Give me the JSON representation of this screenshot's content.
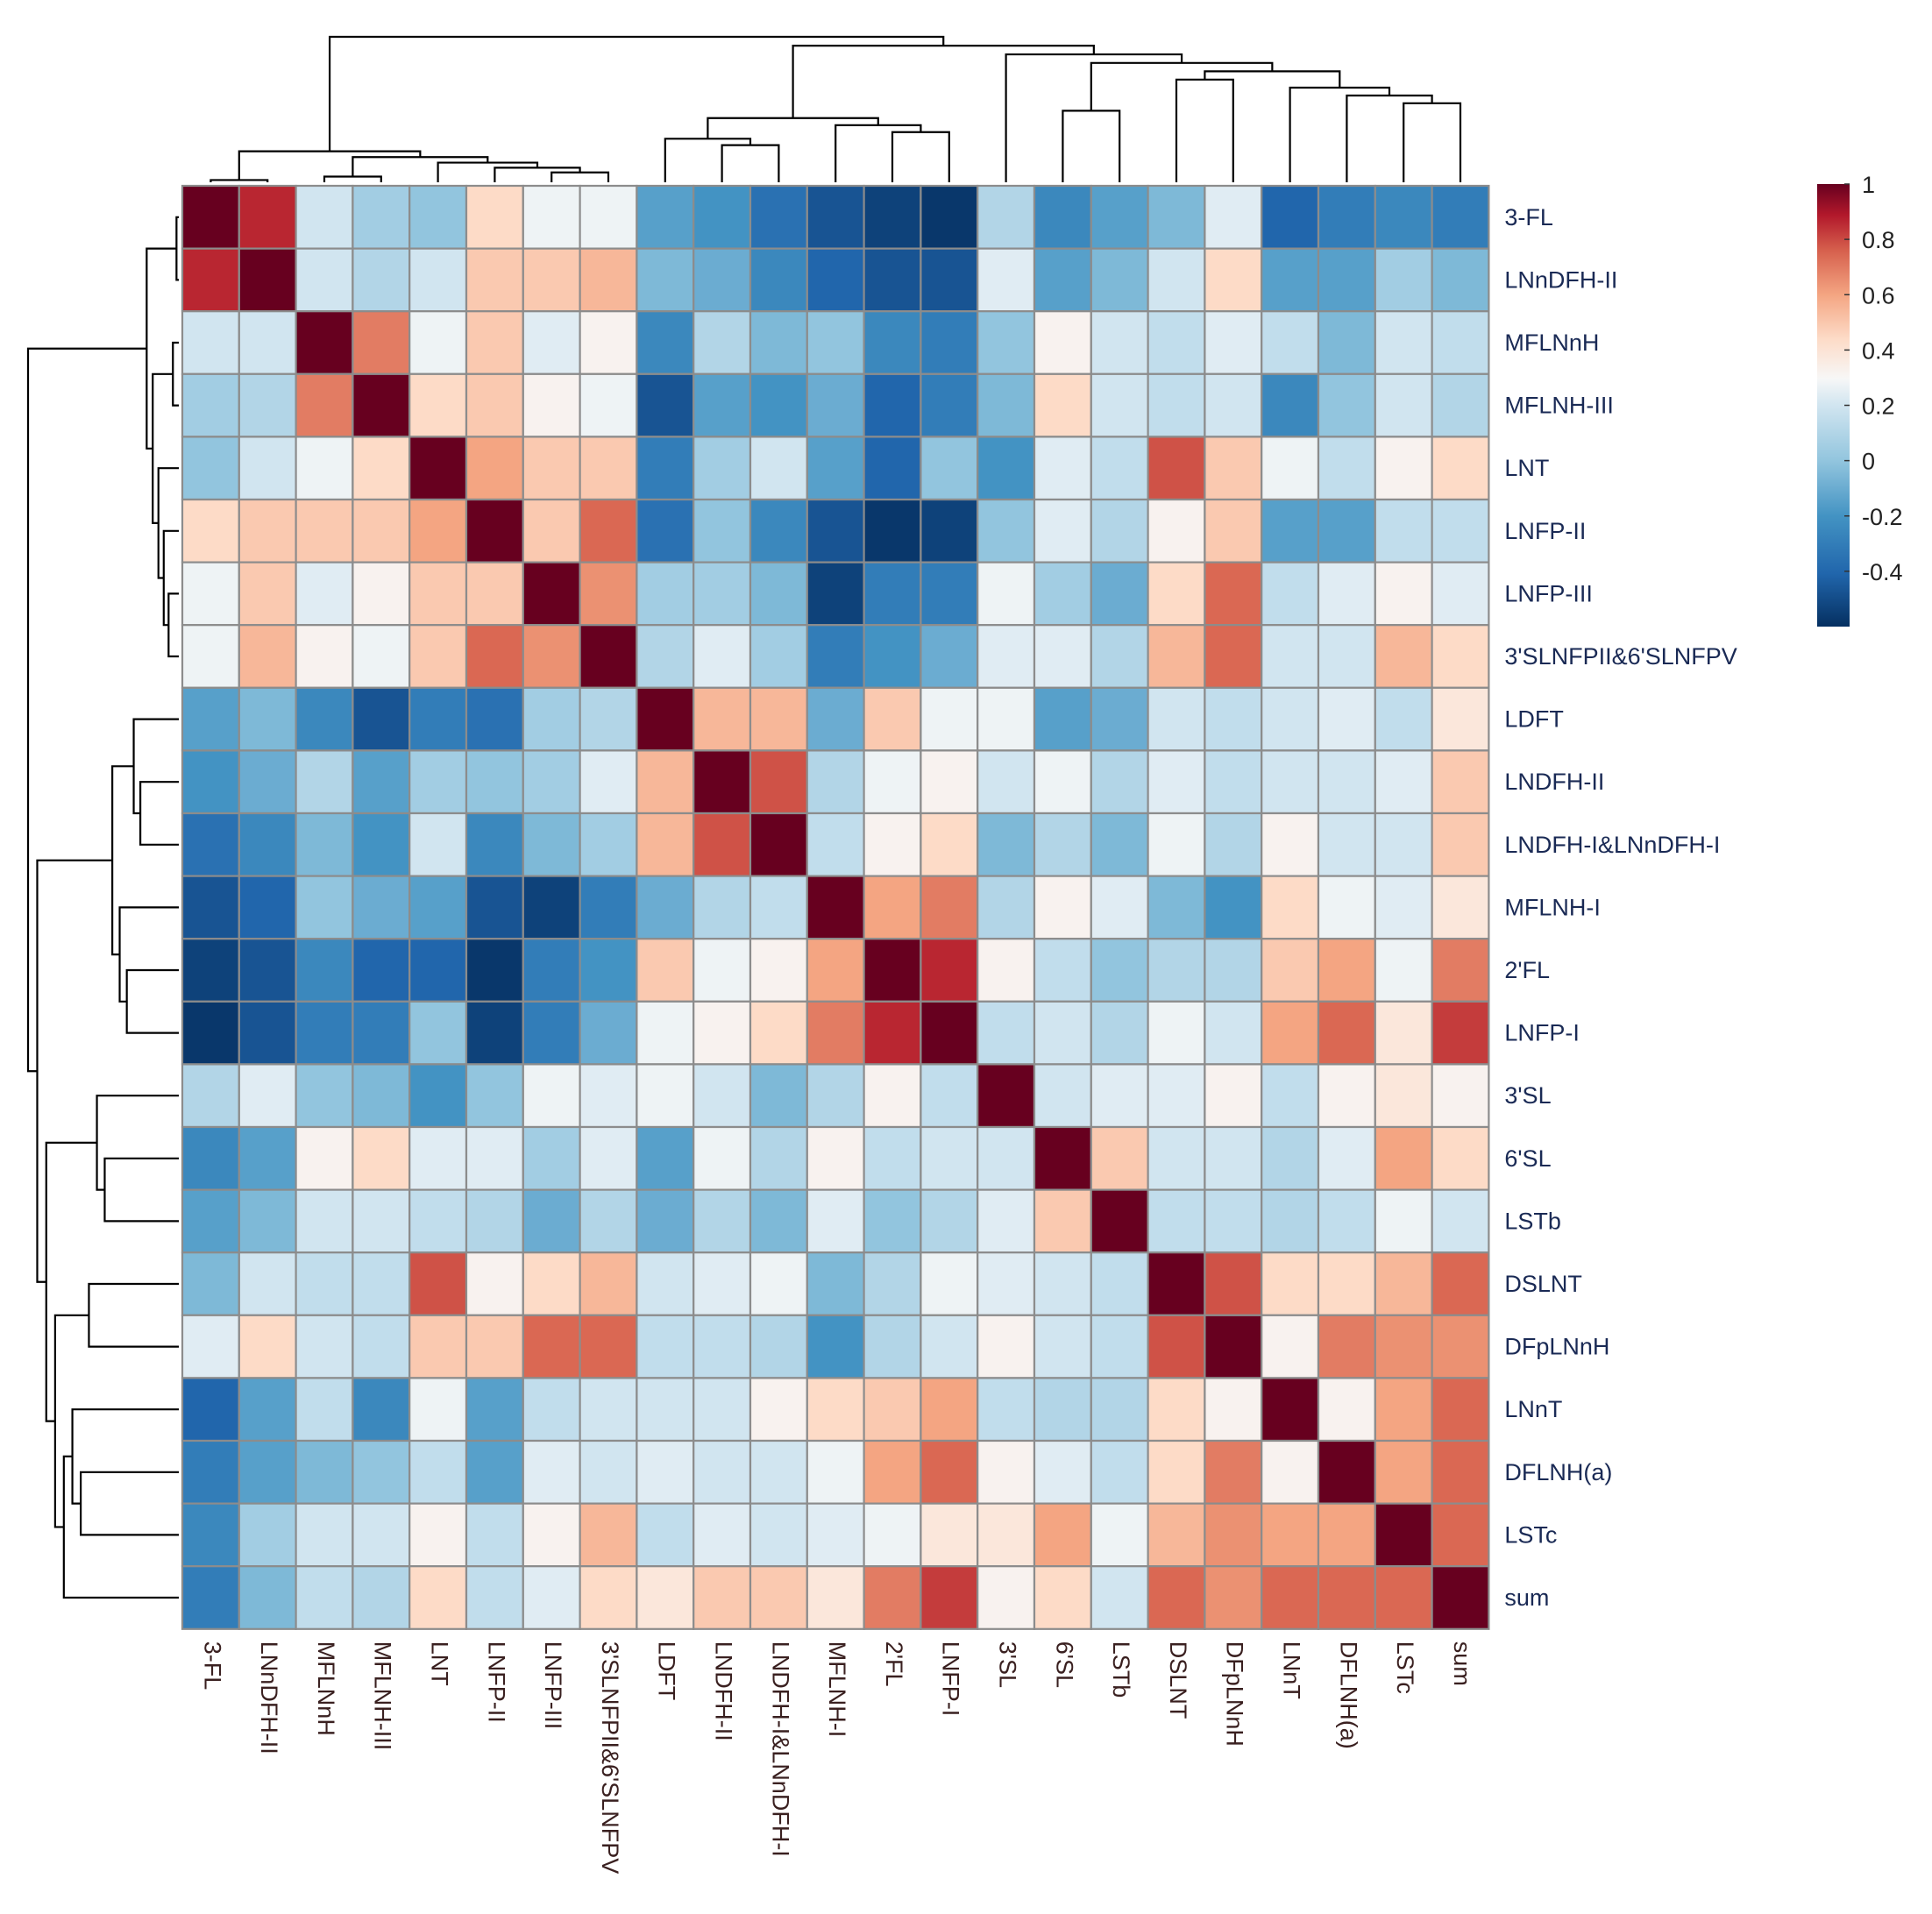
{
  "chart_data": {
    "type": "heatmap",
    "title": "",
    "labels": [
      "3-FL",
      "LNnDFH-II",
      "MFLNnH",
      "MFLNH-III",
      "LNT",
      "LNFP-II",
      "LNFP-III",
      "3'SLNFPII&6'SLNFPV",
      "LDFT",
      "LNDFH-II",
      "LNDFH-I&LNnDFH-I",
      "MFLNH-I",
      "2'FL",
      "LNFP-I",
      "3'SL",
      "6'SL",
      "LSTb",
      "DSLNT",
      "DFpLNnH",
      "LNnT",
      "DFLNH(a)",
      "LSTc",
      "sum"
    ],
    "values": [
      [
        1.0,
        0.85,
        0.15,
        0.0,
        -0.05,
        0.4,
        0.25,
        0.25,
        -0.2,
        -0.25,
        -0.4,
        -0.5,
        -0.55,
        -0.58,
        0.05,
        -0.3,
        -0.2,
        -0.1,
        0.2,
        -0.45,
        -0.35,
        -0.3,
        -0.35
      ],
      [
        0.85,
        1.0,
        0.15,
        0.05,
        0.15,
        0.45,
        0.45,
        0.5,
        -0.1,
        -0.15,
        -0.3,
        -0.45,
        -0.5,
        -0.5,
        0.2,
        -0.2,
        -0.1,
        0.15,
        0.4,
        -0.2,
        -0.2,
        0.0,
        -0.1
      ],
      [
        0.15,
        0.15,
        1.0,
        0.65,
        0.25,
        0.45,
        0.2,
        0.3,
        -0.3,
        0.05,
        -0.1,
        -0.05,
        -0.3,
        -0.35,
        -0.05,
        0.3,
        0.15,
        0.1,
        0.2,
        0.1,
        -0.1,
        0.15,
        0.1
      ],
      [
        0.0,
        0.05,
        0.65,
        1.0,
        0.4,
        0.45,
        0.3,
        0.25,
        -0.5,
        -0.2,
        -0.25,
        -0.15,
        -0.45,
        -0.35,
        -0.1,
        0.4,
        0.15,
        0.1,
        0.15,
        -0.3,
        -0.05,
        0.15,
        0.05
      ],
      [
        -0.05,
        0.15,
        0.25,
        0.4,
        1.0,
        0.55,
        0.45,
        0.45,
        -0.35,
        0.0,
        0.15,
        -0.2,
        -0.45,
        -0.05,
        -0.25,
        0.2,
        0.1,
        0.75,
        0.45,
        0.25,
        0.1,
        0.3,
        0.4
      ],
      [
        0.4,
        0.45,
        0.45,
        0.45,
        0.55,
        1.0,
        0.45,
        0.7,
        -0.4,
        -0.05,
        -0.3,
        -0.5,
        -0.58,
        -0.55,
        -0.05,
        0.2,
        0.05,
        0.3,
        0.45,
        -0.2,
        -0.2,
        0.1,
        0.1
      ],
      [
        0.25,
        0.45,
        0.2,
        0.3,
        0.45,
        0.45,
        1.0,
        0.6,
        0.0,
        0.0,
        -0.1,
        -0.55,
        -0.35,
        -0.35,
        0.25,
        0.0,
        -0.15,
        0.4,
        0.7,
        0.1,
        0.2,
        0.3,
        0.2
      ],
      [
        0.25,
        0.5,
        0.3,
        0.25,
        0.45,
        0.7,
        0.6,
        1.0,
        0.05,
        0.2,
        0.0,
        -0.35,
        -0.25,
        -0.15,
        0.2,
        0.2,
        0.05,
        0.5,
        0.7,
        0.15,
        0.15,
        0.5,
        0.4
      ],
      [
        -0.2,
        -0.1,
        -0.3,
        -0.5,
        -0.35,
        -0.4,
        0.0,
        0.05,
        1.0,
        0.5,
        0.5,
        -0.15,
        0.45,
        0.25,
        0.25,
        -0.2,
        -0.15,
        0.15,
        0.1,
        0.15,
        0.2,
        0.1,
        0.35
      ],
      [
        -0.25,
        -0.15,
        0.05,
        -0.2,
        0.0,
        -0.05,
        0.0,
        0.2,
        0.5,
        1.0,
        0.75,
        0.05,
        0.25,
        0.3,
        0.15,
        0.25,
        0.05,
        0.2,
        0.1,
        0.15,
        0.15,
        0.2,
        0.45
      ],
      [
        -0.4,
        -0.3,
        -0.1,
        -0.25,
        0.15,
        -0.3,
        -0.1,
        0.0,
        0.5,
        0.75,
        1.0,
        0.1,
        0.3,
        0.4,
        -0.1,
        0.05,
        -0.1,
        0.25,
        0.05,
        0.3,
        0.15,
        0.15,
        0.45
      ],
      [
        -0.5,
        -0.45,
        -0.05,
        -0.15,
        -0.2,
        -0.5,
        -0.55,
        -0.35,
        -0.15,
        0.05,
        0.1,
        1.0,
        0.55,
        0.65,
        0.05,
        0.3,
        0.2,
        -0.1,
        -0.25,
        0.4,
        0.25,
        0.2,
        0.35
      ],
      [
        -0.55,
        -0.5,
        -0.3,
        -0.45,
        -0.45,
        -0.58,
        -0.35,
        -0.25,
        0.45,
        0.25,
        0.3,
        0.55,
        1.0,
        0.85,
        0.3,
        0.1,
        -0.05,
        0.05,
        0.05,
        0.45,
        0.55,
        0.25,
        0.65
      ],
      [
        -0.58,
        -0.5,
        -0.35,
        -0.35,
        -0.05,
        -0.55,
        -0.35,
        -0.15,
        0.25,
        0.3,
        0.4,
        0.65,
        0.85,
        1.0,
        0.1,
        0.15,
        0.05,
        0.25,
        0.15,
        0.55,
        0.7,
        0.35,
        0.8
      ],
      [
        0.05,
        0.2,
        -0.05,
        -0.1,
        -0.25,
        -0.05,
        0.25,
        0.2,
        0.25,
        0.15,
        -0.1,
        0.05,
        0.3,
        0.1,
        1.0,
        0.15,
        0.2,
        0.2,
        0.3,
        0.1,
        0.3,
        0.35,
        0.3
      ],
      [
        -0.3,
        -0.2,
        0.3,
        0.4,
        0.2,
        0.2,
        0.0,
        0.2,
        -0.2,
        0.25,
        0.05,
        0.3,
        0.1,
        0.15,
        0.15,
        1.0,
        0.45,
        0.15,
        0.15,
        0.05,
        0.2,
        0.55,
        0.4
      ],
      [
        -0.2,
        -0.1,
        0.15,
        0.15,
        0.1,
        0.05,
        -0.15,
        0.05,
        -0.15,
        0.05,
        -0.1,
        0.2,
        -0.05,
        0.05,
        0.2,
        0.45,
        1.0,
        0.1,
        0.1,
        0.05,
        0.1,
        0.25,
        0.15
      ],
      [
        -0.1,
        0.15,
        0.1,
        0.1,
        0.75,
        0.3,
        0.4,
        0.5,
        0.15,
        0.2,
        0.25,
        -0.1,
        0.05,
        0.25,
        0.2,
        0.15,
        0.1,
        1.0,
        0.75,
        0.4,
        0.4,
        0.5,
        0.7
      ],
      [
        0.2,
        0.4,
        0.15,
        0.1,
        0.45,
        0.45,
        0.7,
        0.7,
        0.1,
        0.1,
        0.05,
        -0.25,
        0.05,
        0.15,
        0.3,
        0.15,
        0.1,
        0.75,
        1.0,
        0.3,
        0.65,
        0.6,
        0.6
      ],
      [
        -0.45,
        -0.2,
        0.1,
        -0.3,
        0.25,
        -0.2,
        0.1,
        0.15,
        0.15,
        0.15,
        0.3,
        0.4,
        0.45,
        0.55,
        0.1,
        0.05,
        0.05,
        0.4,
        0.3,
        1.0,
        0.3,
        0.55,
        0.7
      ],
      [
        -0.35,
        -0.2,
        -0.1,
        -0.05,
        0.1,
        -0.2,
        0.2,
        0.15,
        0.2,
        0.15,
        0.15,
        0.25,
        0.55,
        0.7,
        0.3,
        0.2,
        0.1,
        0.4,
        0.65,
        0.3,
        1.0,
        0.55,
        0.7
      ],
      [
        -0.3,
        0.0,
        0.15,
        0.15,
        0.3,
        0.1,
        0.3,
        0.5,
        0.1,
        0.2,
        0.15,
        0.2,
        0.25,
        0.35,
        0.35,
        0.55,
        0.25,
        0.5,
        0.6,
        0.55,
        0.55,
        1.0,
        0.7
      ],
      [
        -0.35,
        -0.1,
        0.1,
        0.05,
        0.4,
        0.1,
        0.2,
        0.4,
        0.35,
        0.45,
        0.45,
        0.35,
        0.65,
        0.8,
        0.3,
        0.4,
        0.15,
        0.7,
        0.6,
        0.7,
        0.7,
        0.7,
        1.0
      ]
    ],
    "colorbar": {
      "ticks": [
        "1",
        "0.8",
        "0.6",
        "0.4",
        "0.2",
        "0",
        "-0.2",
        "-0.4"
      ],
      "tick_values": [
        1,
        0.8,
        0.6,
        0.4,
        0.2,
        0,
        -0.2,
        -0.4
      ],
      "range": [
        -0.6,
        1
      ]
    },
    "colors": {
      "negative": "#053061",
      "neutral": "#f7f7f7",
      "positive": "#67001f",
      "grid": "#8c8c8c",
      "dendrogram": "#000000"
    },
    "row_dendrogram": [
      [
        0,
        1
      ],
      [
        2,
        3
      ],
      [
        6,
        7
      ],
      [
        5,
        "c3"
      ],
      [
        4,
        "c4"
      ],
      [
        "c2",
        "c5"
      ],
      [
        "c1",
        "c6"
      ],
      [
        9,
        10
      ],
      [
        8,
        "c8"
      ],
      [
        12,
        13
      ],
      [
        11,
        "c10"
      ],
      [
        "c9",
        "c11"
      ],
      [
        15,
        16
      ],
      [
        14,
        "c13"
      ],
      [
        17,
        18
      ],
      [
        20,
        21
      ],
      [
        19,
        "c16"
      ],
      [
        22,
        "c17"
      ],
      [
        "c15",
        "c18"
      ],
      [
        "c14",
        "c19"
      ],
      [
        "c12",
        "c20"
      ],
      [
        "c7",
        "c21"
      ]
    ],
    "col_dendrogram": [
      [
        0,
        1
      ],
      [
        2,
        3
      ],
      [
        6,
        7
      ],
      [
        5,
        "c3"
      ],
      [
        4,
        "c4"
      ],
      [
        "c2",
        "c5"
      ],
      [
        "c1",
        "c6"
      ],
      [
        9,
        10
      ],
      [
        8,
        "c8"
      ],
      [
        12,
        13
      ],
      [
        11,
        "c10"
      ],
      [
        "c9",
        "c11"
      ],
      [
        15,
        16
      ],
      [
        21,
        22
      ],
      [
        20,
        "c14"
      ],
      [
        19,
        "c15"
      ],
      [
        17,
        18
      ],
      [
        "c17",
        "c16"
      ],
      [
        "c13",
        "c18"
      ],
      [
        14,
        "c19"
      ],
      [
        "c12",
        "c20"
      ],
      [
        "c7",
        "c21"
      ]
    ]
  }
}
